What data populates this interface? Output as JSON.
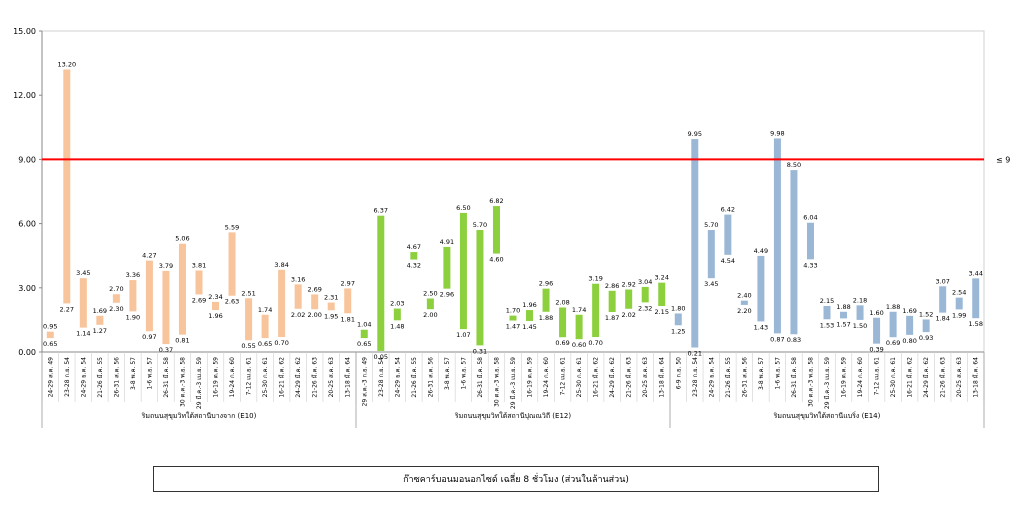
{
  "chart_data": {
    "type": "bar",
    "subtype": "floating-range",
    "ylim": [
      0,
      15
    ],
    "yticks": [
      "0.00",
      "3.00",
      "6.00",
      "9.00",
      "12.00",
      "15.00"
    ],
    "threshold": {
      "value": 9,
      "label": "≤ 9",
      "color": "#ff0000"
    },
    "legend_title": "ก๊าซคาร์บอนมอนอกไซด์ เฉลี่ย 8 ชั่วโมง (ส่วนในล้านส่วน)",
    "grid": false,
    "groups": [
      {
        "name": "ริมถนนสุขุมวิทใต้สถานีบางจาก (E10)",
        "color": "#f8c49b",
        "bars": [
          {
            "label": "24-29 ส.ค. 49",
            "low": 0.65,
            "high": 0.95
          },
          {
            "label": "23-28 ก.ย. 54",
            "low": 2.27,
            "high": 13.2
          },
          {
            "label": "24-29 ธ.ค. 54",
            "low": 1.14,
            "high": 3.45
          },
          {
            "label": "21-26 มี.ค. 55",
            "low": 1.27,
            "high": 1.69
          },
          {
            "label": "26-31 ส.ค. 56",
            "low": 2.3,
            "high": 2.7
          },
          {
            "label": "3-8 พ.ค. 57",
            "low": 1.9,
            "high": 3.36
          },
          {
            "label": "1-6 พ.ย. 57",
            "low": 0.97,
            "high": 4.27
          },
          {
            "label": "26-31 มี.ค. 58",
            "low": 0.37,
            "high": 3.79
          },
          {
            "label": "30 ต.ค.-3 พ.ย. 58",
            "low": 0.81,
            "high": 5.06
          },
          {
            "label": "29 มี.ค.-3 เม.ย. 59",
            "low": 2.69,
            "high": 3.81
          },
          {
            "label": "16-19 ต.ค. 59",
            "low": 1.96,
            "high": 2.34
          },
          {
            "label": "19-24 ก.ค. 60",
            "low": 2.63,
            "high": 5.59
          },
          {
            "label": "7-12 เม.ย. 61",
            "low": 0.55,
            "high": 2.51
          },
          {
            "label": "25-30 ก.ค. 61",
            "low": 0.65,
            "high": 1.74
          },
          {
            "label": "16-21 มี.ค. 62",
            "low": 0.7,
            "high": 3.84
          },
          {
            "label": "24-29 มี.ค. 62",
            "low": 2.02,
            "high": 3.16
          },
          {
            "label": "21-26 มี.ค. 63",
            "low": 2.0,
            "high": 2.69
          },
          {
            "label": "20-25 ส.ค. 63",
            "low": 1.95,
            "high": 2.31
          },
          {
            "label": "13-18 มี.ค. 64",
            "low": 1.81,
            "high": 2.97
          }
        ]
      },
      {
        "name": "ริมถนนสุขุมวิทใต้สถานีปุณณวิถี (E12)",
        "color": "#8cd03e",
        "bars": [
          {
            "label": "29 ส.ค.-3 ก.ย. 49",
            "low": 0.65,
            "high": 1.04
          },
          {
            "label": "23-28 ก.ย. 54",
            "low": 0.05,
            "high": 6.37
          },
          {
            "label": "24-29 ธ.ค. 54",
            "low": 1.48,
            "high": 2.03
          },
          {
            "label": "21-26 มี.ค. 55",
            "low": 4.32,
            "high": 4.67
          },
          {
            "label": "26-31 ส.ค. 56",
            "low": 2.0,
            "high": 2.5
          },
          {
            "label": "3-8 พ.ค. 57",
            "low": 2.96,
            "high": 4.91
          },
          {
            "label": "1-6 พ.ย. 57",
            "low": 1.07,
            "high": 6.5
          },
          {
            "label": "26-31 มี.ค. 58",
            "low": 0.31,
            "high": 5.7
          },
          {
            "label": "30 ต.ค.-3 พ.ย. 58",
            "low": 4.6,
            "high": 6.82
          },
          {
            "label": "29 มี.ค.-3 เม.ย. 59",
            "low": 1.47,
            "high": 1.7
          },
          {
            "label": "16-19 ต.ค. 59",
            "low": 1.45,
            "high": 1.96
          },
          {
            "label": "19-24 ก.ค. 60",
            "low": 1.88,
            "high": 2.96
          },
          {
            "label": "7-12 เม.ย. 61",
            "low": 0.69,
            "high": 2.08
          },
          {
            "label": "25-30 ก.ค. 61",
            "low": 0.6,
            "high": 1.74
          },
          {
            "label": "16-21 มี.ค. 62",
            "low": 0.7,
            "high": 3.19
          },
          {
            "label": "24-29 มี.ค. 62",
            "low": 1.87,
            "high": 2.86
          },
          {
            "label": "21-26 มี.ค. 63",
            "low": 2.02,
            "high": 2.92
          },
          {
            "label": "20-25 ส.ค. 63",
            "low": 2.32,
            "high": 3.04
          },
          {
            "label": "13-18 มี.ค. 64",
            "low": 2.15,
            "high": 3.24
          }
        ]
      },
      {
        "name": "ริมถนนสุขุมวิทใต้สถานีแบริ่ง (E14)",
        "color": "#9bb7d6",
        "bars": [
          {
            "label": "6-9 ก.ย. 50",
            "low": 1.25,
            "high": 1.8
          },
          {
            "label": "23-28 ก.ย. 54",
            "low": 0.21,
            "high": 9.95
          },
          {
            "label": "24-29 ธ.ค. 54",
            "low": 3.45,
            "high": 5.7
          },
          {
            "label": "21-26 มี.ค. 55",
            "low": 4.54,
            "high": 6.42
          },
          {
            "label": "26-31 ส.ค. 56",
            "low": 2.2,
            "high": 2.4
          },
          {
            "label": "3-8 พ.ค. 57",
            "low": 1.43,
            "high": 4.49
          },
          {
            "label": "1-6 พ.ย. 57",
            "low": 0.87,
            "high": 9.98
          },
          {
            "label": "26-31 มี.ค. 58",
            "low": 0.83,
            "high": 8.5
          },
          {
            "label": "30 ต.ค.-3 พ.ย. 58",
            "low": 4.33,
            "high": 6.04
          },
          {
            "label": "29 มี.ค.-3 เม.ย. 59",
            "low": 1.53,
            "high": 2.15
          },
          {
            "label": "16-19 ต.ค. 59",
            "low": 1.57,
            "high": 1.88
          },
          {
            "label": "19-24 ก.ค. 60",
            "low": 1.5,
            "high": 2.18
          },
          {
            "label": "7-12 เม.ย. 61",
            "low": 0.39,
            "high": 1.6
          },
          {
            "label": "25-30 ก.ค. 61",
            "low": 0.69,
            "high": 1.88
          },
          {
            "label": "16-21 มี.ค. 62",
            "low": 0.8,
            "high": 1.69
          },
          {
            "label": "24-29 มี.ค. 62",
            "low": 0.93,
            "high": 1.52
          },
          {
            "label": "21-26 มี.ค. 63",
            "low": 1.84,
            "high": 3.07
          },
          {
            "label": "20-25 ส.ค. 63",
            "low": 1.99,
            "high": 2.54
          },
          {
            "label": "13-18 มี.ค. 64",
            "low": 1.58,
            "high": 3.44
          }
        ]
      }
    ]
  }
}
